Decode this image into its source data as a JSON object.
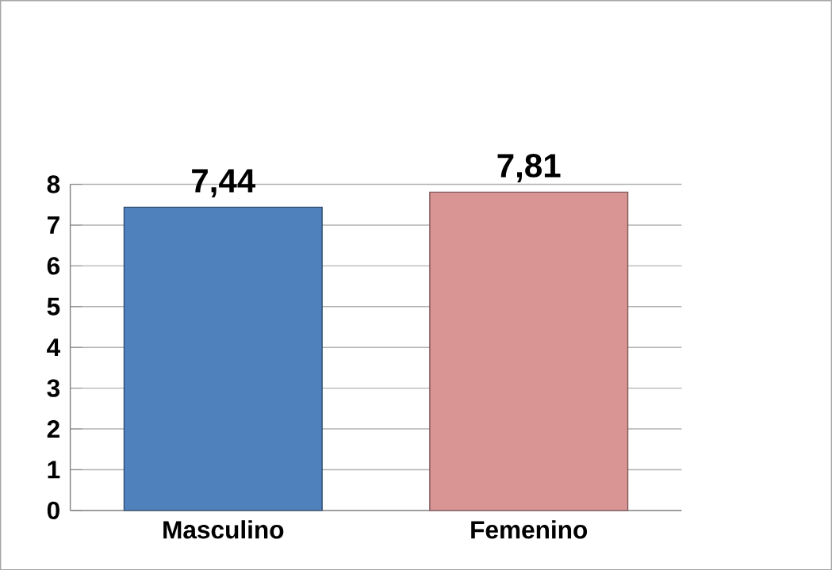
{
  "chart_data": {
    "type": "bar",
    "categories": [
      "Masculino",
      "Femenino"
    ],
    "values": [
      7.44,
      7.81
    ],
    "colors": [
      "#4f81bd",
      "#d99594"
    ],
    "value_labels": [
      "7,44",
      "7,81"
    ],
    "ylim": [
      0,
      8
    ],
    "yticks": [
      0,
      1,
      2,
      3,
      4,
      5,
      6,
      7,
      8
    ],
    "grid": "y"
  }
}
